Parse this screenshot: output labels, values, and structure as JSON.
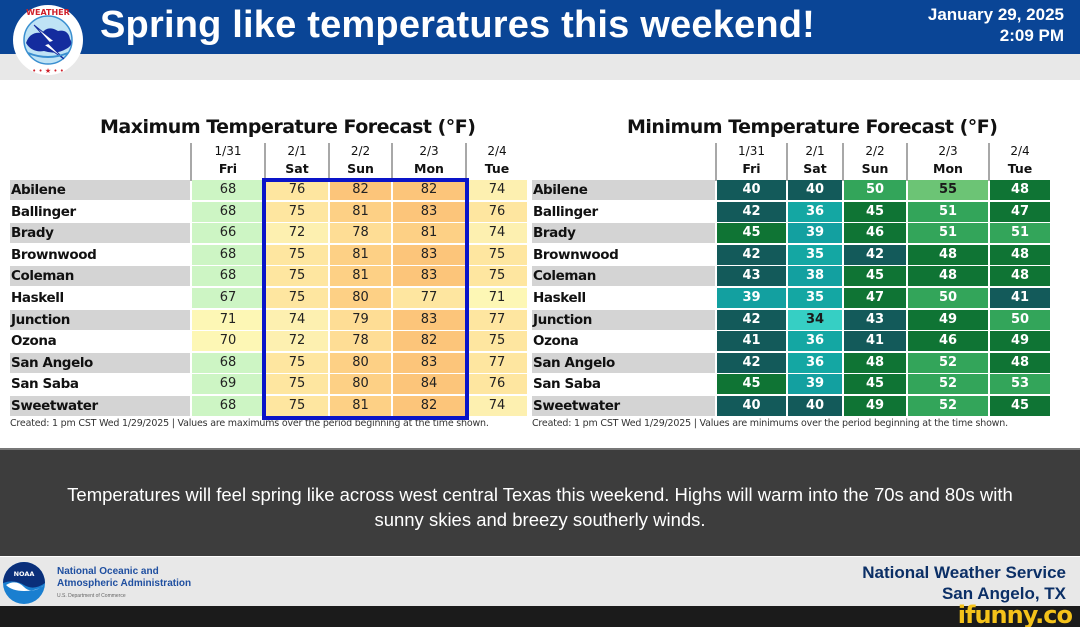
{
  "header": {
    "title": "Spring like temperatures this weekend!",
    "date": "January 29, 2025",
    "time": "2:09 PM",
    "logo": "nws-logo",
    "brand_color": "#0a4596"
  },
  "max_table": {
    "title": "Maximum Temperature Forecast (°F)",
    "days": [
      {
        "date": "1/31",
        "weekday": "Fri"
      },
      {
        "date": "2/1",
        "weekday": "Sat"
      },
      {
        "date": "2/2",
        "weekday": "Sun"
      },
      {
        "date": "2/3",
        "weekday": "Mon"
      },
      {
        "date": "2/4",
        "weekday": "Tue"
      }
    ],
    "note": "Created: 1 pm CST Wed 1/29/2025  |  Values are maximums over the period beginning at the time shown.",
    "highlight_color": "#0a14c8"
  },
  "min_table": {
    "title": "Minimum Temperature Forecast (°F)",
    "days": [
      {
        "date": "1/31",
        "weekday": "Fri"
      },
      {
        "date": "2/1",
        "weekday": "Sat"
      },
      {
        "date": "2/2",
        "weekday": "Sun"
      },
      {
        "date": "2/3",
        "weekday": "Mon"
      },
      {
        "date": "2/4",
        "weekday": "Tue"
      }
    ],
    "note": "Created: 1 pm CST Wed 1/29/2025  |  Values are minimums over the period beginning at the time shown."
  },
  "chart_data": [
    {
      "type": "table",
      "title": "Maximum Temperature Forecast (°F)",
      "columns": [
        "1/31 Fri",
        "2/1 Sat",
        "2/2 Sun",
        "2/3 Mon",
        "2/4 Tue"
      ],
      "rows": [
        "Abilene",
        "Ballinger",
        "Brady",
        "Brownwood",
        "Coleman",
        "Haskell",
        "Junction",
        "Ozona",
        "San Angelo",
        "San Saba",
        "Sweetwater"
      ],
      "values": [
        [
          68,
          76,
          82,
          82,
          74
        ],
        [
          68,
          75,
          81,
          83,
          76
        ],
        [
          66,
          72,
          78,
          81,
          74
        ],
        [
          68,
          75,
          81,
          83,
          75
        ],
        [
          68,
          75,
          81,
          83,
          75
        ],
        [
          67,
          75,
          80,
          77,
          71
        ],
        [
          71,
          74,
          79,
          83,
          77
        ],
        [
          70,
          72,
          78,
          82,
          75
        ],
        [
          68,
          75,
          80,
          83,
          77
        ],
        [
          69,
          75,
          80,
          84,
          76
        ],
        [
          68,
          75,
          81,
          82,
          74
        ]
      ],
      "highlighted_columns": [
        "2/1 Sat",
        "2/2 Sun",
        "2/3 Mon"
      ]
    },
    {
      "type": "table",
      "title": "Minimum Temperature Forecast (°F)",
      "columns": [
        "1/31 Fri",
        "2/1 Sat",
        "2/2 Sun",
        "2/3 Mon",
        "2/4 Tue"
      ],
      "rows": [
        "Abilene",
        "Ballinger",
        "Brady",
        "Brownwood",
        "Coleman",
        "Haskell",
        "Junction",
        "Ozona",
        "San Angelo",
        "San Saba",
        "Sweetwater"
      ],
      "values": [
        [
          40,
          40,
          50,
          55,
          48
        ],
        [
          42,
          36,
          45,
          51,
          47
        ],
        [
          45,
          39,
          46,
          51,
          51
        ],
        [
          42,
          35,
          42,
          48,
          48
        ],
        [
          43,
          38,
          45,
          48,
          48
        ],
        [
          39,
          35,
          47,
          50,
          41
        ],
        [
          42,
          34,
          43,
          49,
          50
        ],
        [
          41,
          36,
          41,
          46,
          49
        ],
        [
          42,
          36,
          48,
          52,
          48
        ],
        [
          45,
          39,
          45,
          52,
          53
        ],
        [
          40,
          40,
          49,
          52,
          45
        ]
      ]
    }
  ],
  "description": "Temperatures will feel spring like across west central Texas this weekend. Highs will warm into the 70s and 80s with sunny skies and breezy southerly winds.",
  "footer": {
    "noaa_line1": "National Oceanic and",
    "noaa_line2": "Atmospheric Administration",
    "noaa_dept": "U.S. Department of Commerce",
    "office_line1": "National Weather Service",
    "office_line2": "San Angelo, TX"
  },
  "watermark": "ifunny.co"
}
